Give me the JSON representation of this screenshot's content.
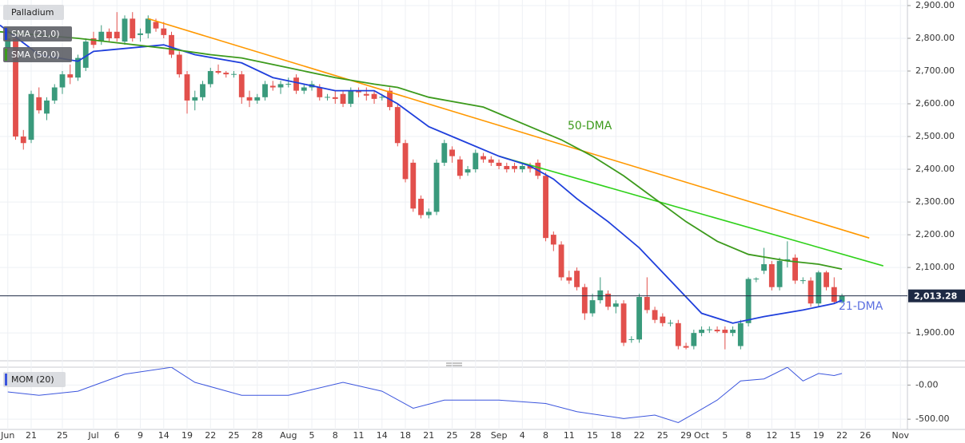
{
  "chart_data": {
    "type": "candlestick",
    "title": "Palladium",
    "up_color": "#3a9a7c",
    "down_color": "#e2504c",
    "xlim": [
      -1,
      115.4
    ],
    "ylim": [
      1815,
      2917
    ],
    "grid": true,
    "yticks": [
      {
        "value": 2900,
        "label": "2,900.00"
      },
      {
        "value": 2800,
        "label": "2,800.00"
      },
      {
        "value": 2700,
        "label": "2,700.00"
      },
      {
        "value": 2600,
        "label": "2,600.00"
      },
      {
        "value": 2500,
        "label": "2,500.00"
      },
      {
        "value": 2400,
        "label": "2,400.00"
      },
      {
        "value": 2300,
        "label": "2,300.00"
      },
      {
        "value": 2200,
        "label": "2,200.00"
      },
      {
        "value": 2100,
        "label": "2,100.00"
      },
      {
        "value": 1900,
        "label": "1,900.00"
      }
    ],
    "xticks": [
      {
        "value": 0,
        "label": "Jun"
      },
      {
        "value": 3,
        "label": "21"
      },
      {
        "value": 7,
        "label": "25"
      },
      {
        "value": 11,
        "label": "Jul"
      },
      {
        "value": 14,
        "label": "6"
      },
      {
        "value": 17,
        "label": "9"
      },
      {
        "value": 20,
        "label": "14"
      },
      {
        "value": 23,
        "label": "19"
      },
      {
        "value": 26,
        "label": "22"
      },
      {
        "value": 29,
        "label": "25"
      },
      {
        "value": 32,
        "label": "28"
      },
      {
        "value": 36,
        "label": "Aug"
      },
      {
        "value": 39,
        "label": "5"
      },
      {
        "value": 42,
        "label": "8"
      },
      {
        "value": 45,
        "label": "11"
      },
      {
        "value": 48,
        "label": "14"
      },
      {
        "value": 51,
        "label": "18"
      },
      {
        "value": 54,
        "label": "21"
      },
      {
        "value": 57,
        "label": "25"
      },
      {
        "value": 60,
        "label": "28"
      },
      {
        "value": 63,
        "label": "Sep"
      },
      {
        "value": 66,
        "label": "4"
      },
      {
        "value": 69,
        "label": "8"
      },
      {
        "value": 72,
        "label": "11"
      },
      {
        "value": 75,
        "label": "15"
      },
      {
        "value": 78,
        "label": "18"
      },
      {
        "value": 81,
        "label": "22"
      },
      {
        "value": 84,
        "label": "25"
      },
      {
        "value": 87,
        "label": "29"
      },
      {
        "value": 89,
        "label": "Oct"
      },
      {
        "value": 92,
        "label": "5"
      },
      {
        "value": 95,
        "label": "8"
      },
      {
        "value": 98,
        "label": "12"
      },
      {
        "value": 101,
        "label": "15"
      },
      {
        "value": 104,
        "label": "19"
      },
      {
        "value": 107,
        "label": "22"
      },
      {
        "value": 110,
        "label": "26"
      },
      {
        "value": 114.5,
        "label": "Nov"
      }
    ],
    "ohlc": [
      [
        2770,
        2830,
        2760,
        2800
      ],
      [
        2800,
        2810,
        2490,
        2500
      ],
      [
        2500,
        2520,
        2460,
        2480
      ],
      [
        2490,
        2640,
        2480,
        2630
      ],
      [
        2620,
        2650,
        2570,
        2580
      ],
      [
        2570,
        2620,
        2550,
        2610
      ],
      [
        2610,
        2660,
        2600,
        2650
      ],
      [
        2650,
        2700,
        2630,
        2690
      ],
      [
        2690,
        2720,
        2660,
        2680
      ],
      [
        2680,
        2750,
        2670,
        2740
      ],
      [
        2710,
        2800,
        2700,
        2790
      ],
      [
        2800,
        2820,
        2770,
        2780
      ],
      [
        2790,
        2840,
        2780,
        2820
      ],
      [
        2820,
        2830,
        2790,
        2800
      ],
      [
        2820,
        2880,
        2790,
        2800
      ],
      [
        2790,
        2870,
        2780,
        2860
      ],
      [
        2860,
        2880,
        2790,
        2800
      ],
      [
        2810,
        2830,
        2790,
        2815
      ],
      [
        2815,
        2870,
        2800,
        2860
      ],
      [
        2850,
        2860,
        2820,
        2830
      ],
      [
        2830,
        2850,
        2800,
        2810
      ],
      [
        2810,
        2820,
        2740,
        2750
      ],
      [
        2750,
        2760,
        2680,
        2690
      ],
      [
        2690,
        2700,
        2570,
        2610
      ],
      [
        2610,
        2640,
        2580,
        2620
      ],
      [
        2620,
        2670,
        2610,
        2660
      ],
      [
        2660,
        2710,
        2650,
        2700
      ],
      [
        2700,
        2720,
        2690,
        2695
      ],
      [
        2695,
        2700,
        2680,
        2690
      ],
      [
        2690,
        2700,
        2680,
        2691
      ],
      [
        2690,
        2700,
        2600,
        2620
      ],
      [
        2620,
        2640,
        2590,
        2610
      ],
      [
        2610,
        2630,
        2600,
        2620
      ],
      [
        2620,
        2670,
        2610,
        2660
      ],
      [
        2655,
        2670,
        2640,
        2650
      ],
      [
        2650,
        2670,
        2630,
        2660
      ],
      [
        2660,
        2680,
        2650,
        2661
      ],
      [
        2680,
        2690,
        2630,
        2640
      ],
      [
        2640,
        2660,
        2630,
        2650
      ],
      [
        2650,
        2670,
        2640,
        2660
      ],
      [
        2650,
        2660,
        2610,
        2620
      ],
      [
        2620,
        2630,
        2610,
        2621
      ],
      [
        2620,
        2640,
        2600,
        2615
      ],
      [
        2630,
        2640,
        2590,
        2600
      ],
      [
        2600,
        2650,
        2590,
        2640
      ],
      [
        2640,
        2650,
        2620,
        2635
      ],
      [
        2630,
        2650,
        2610,
        2625
      ],
      [
        2630,
        2640,
        2600,
        2615
      ],
      [
        2620,
        2630,
        2610,
        2621
      ],
      [
        2640,
        2650,
        2580,
        2590
      ],
      [
        2590,
        2600,
        2470,
        2480
      ],
      [
        2480,
        2490,
        2360,
        2370
      ],
      [
        2420,
        2430,
        2270,
        2280
      ],
      [
        2310,
        2320,
        2250,
        2260
      ],
      [
        2260,
        2280,
        2250,
        2270
      ],
      [
        2270,
        2430,
        2260,
        2420
      ],
      [
        2420,
        2490,
        2410,
        2480
      ],
      [
        2460,
        2470,
        2420,
        2440
      ],
      [
        2430,
        2440,
        2370,
        2380
      ],
      [
        2390,
        2410,
        2380,
        2400
      ],
      [
        2400,
        2460,
        2390,
        2450
      ],
      [
        2440,
        2450,
        2420,
        2430
      ],
      [
        2430,
        2440,
        2410,
        2420
      ],
      [
        2420,
        2430,
        2400,
        2410
      ],
      [
        2410,
        2420,
        2390,
        2400
      ],
      [
        2410,
        2420,
        2390,
        2401
      ],
      [
        2400,
        2420,
        2390,
        2410
      ],
      [
        2410,
        2420,
        2390,
        2402
      ],
      [
        2420,
        2430,
        2370,
        2380
      ],
      [
        2380,
        2390,
        2180,
        2190
      ],
      [
        2200,
        2210,
        2150,
        2170
      ],
      [
        2170,
        2180,
        2060,
        2070
      ],
      [
        2070,
        2090,
        2050,
        2060
      ],
      [
        2090,
        2100,
        2030,
        2040
      ],
      [
        2040,
        2050,
        1940,
        1960
      ],
      [
        1960,
        2020,
        1950,
        2000
      ],
      [
        2000,
        2070,
        1990,
        2030
      ],
      [
        2020,
        2030,
        1970,
        1980
      ],
      [
        1980,
        2000,
        1960,
        1990
      ],
      [
        1990,
        2000,
        1860,
        1870
      ],
      [
        1880,
        1890,
        1870,
        1881
      ],
      [
        1880,
        2020,
        1870,
        2010
      ],
      [
        2010,
        2070,
        1960,
        1970
      ],
      [
        1970,
        1980,
        1930,
        1940
      ],
      [
        1950,
        1960,
        1920,
        1930
      ],
      [
        1930,
        1940,
        1920,
        1931
      ],
      [
        1930,
        1940,
        1850,
        1860
      ],
      [
        1860,
        1870,
        1850,
        1855
      ],
      [
        1860,
        1910,
        1850,
        1900
      ],
      [
        1900,
        1920,
        1890,
        1910
      ],
      [
        1910,
        1920,
        1900,
        1911
      ],
      [
        1910,
        1920,
        1900,
        1905
      ],
      [
        1910,
        1920,
        1850,
        1900
      ],
      [
        1900,
        1920,
        1890,
        1910
      ],
      [
        1860,
        1940,
        1850,
        1930
      ],
      [
        1930,
        2070,
        1920,
        2065
      ],
      [
        2065,
        2070,
        2055,
        2066
      ],
      [
        2090,
        2160,
        2080,
        2110
      ],
      [
        2110,
        2120,
        2030,
        2040
      ],
      [
        2040,
        2130,
        2030,
        2120
      ],
      [
        2120,
        2180,
        2100,
        2125
      ],
      [
        2130,
        2140,
        2050,
        2060
      ],
      [
        2060,
        2070,
        2050,
        2061
      ],
      [
        2060,
        2070,
        1980,
        1990
      ],
      [
        1990,
        2090,
        1980,
        2085
      ],
      [
        2085,
        2090,
        2030,
        2040
      ],
      [
        2040,
        2070,
        1990,
        1995
      ],
      [
        1995,
        2020,
        1990,
        2013.28
      ]
    ],
    "series": [
      {
        "name": "SMA (21,0)",
        "color": "#1f3fdc",
        "x": [
          -1,
          4,
          9,
          11,
          20,
          24,
          30,
          34,
          38,
          42,
          47,
          50,
          54,
          58,
          63,
          67,
          70,
          73,
          77,
          81,
          85,
          89,
          93,
          97,
          102,
          106,
          107
        ],
        "values": [
          2840,
          2750,
          2730,
          2760,
          2780,
          2750,
          2725,
          2680,
          2660,
          2640,
          2640,
          2600,
          2530,
          2490,
          2440,
          2410,
          2370,
          2310,
          2240,
          2160,
          2060,
          1960,
          1930,
          1950,
          1970,
          1990,
          2000
        ]
      },
      {
        "name": "SMA (50,0)",
        "color": "#3c9a1c",
        "x": [
          -1,
          9,
          20,
          26,
          30,
          36,
          42,
          47,
          50,
          54,
          61,
          65,
          71,
          75,
          79,
          83,
          87,
          91,
          95,
          100,
          104,
          107
        ],
        "values": [
          2820,
          2800,
          2770,
          2750,
          2740,
          2710,
          2680,
          2660,
          2650,
          2620,
          2590,
          2550,
          2490,
          2440,
          2380,
          2310,
          2240,
          2180,
          2140,
          2120,
          2110,
          2095
        ]
      }
    ],
    "trendlines": [
      {
        "color": "#ff9800",
        "x": [
          18,
          110.5
        ],
        "values": [
          2860,
          2190
        ]
      },
      {
        "color": "#2fd11a",
        "x": [
          63,
          112.3
        ],
        "values": [
          2440,
          2105
        ]
      }
    ],
    "annotations": [
      {
        "text": "50-DMA",
        "color": "#3c9a1c"
      },
      {
        "text": "21-DMA",
        "color": "#5b6fe0"
      }
    ],
    "last_price": {
      "value": 2013.28,
      "label": "2,013.28"
    },
    "momentum": {
      "name": "MOM (20)",
      "color": "#3b55dd",
      "ylim": [
        -650,
        262
      ],
      "yticks": [
        {
          "value": 0,
          "label": "-0.00"
        },
        {
          "value": -500,
          "label": "-500.00"
        }
      ],
      "x": [
        0,
        4,
        9,
        15,
        21,
        24,
        30,
        36,
        43,
        48,
        52,
        56,
        63,
        69,
        73,
        79,
        83,
        86,
        88,
        91,
        94,
        97,
        100,
        102,
        104,
        106,
        107
      ],
      "values": [
        -100,
        -150,
        -90,
        160,
        260,
        40,
        -150,
        -150,
        40,
        -90,
        -340,
        -220,
        -220,
        -270,
        -390,
        -490,
        -440,
        -550,
        -420,
        -220,
        60,
        90,
        260,
        60,
        170,
        140,
        170
      ]
    }
  }
}
